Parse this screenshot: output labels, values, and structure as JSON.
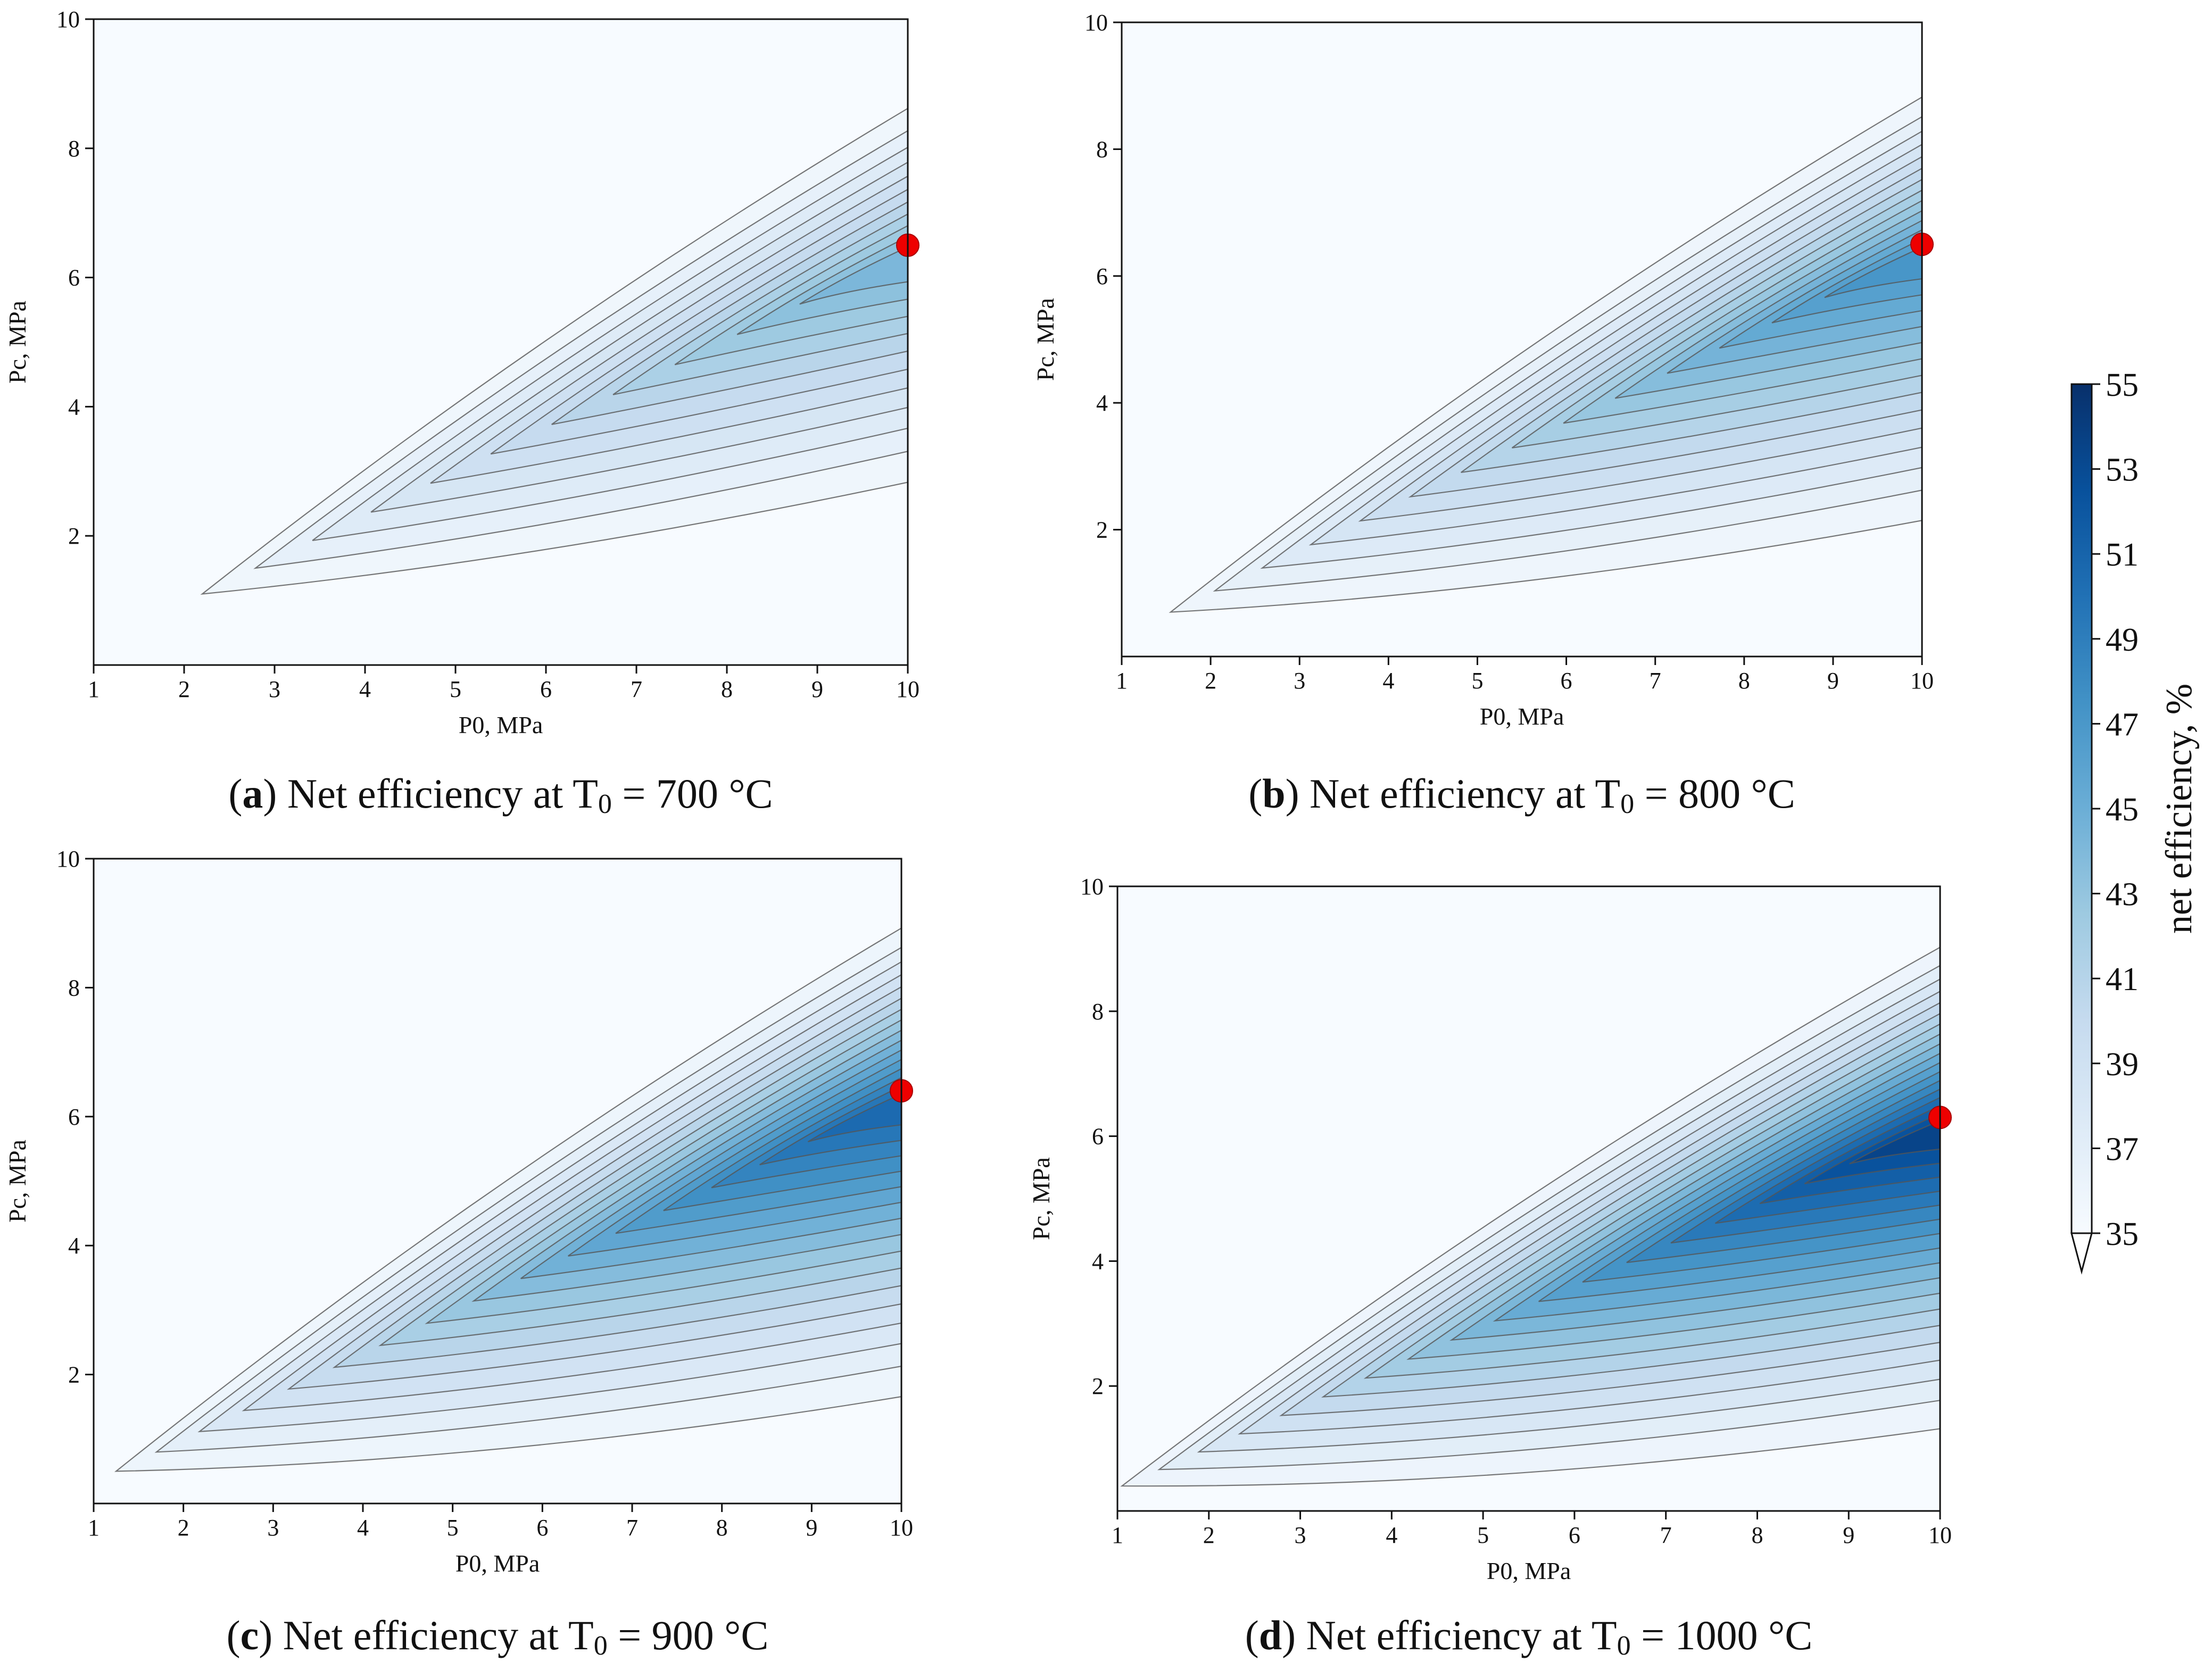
{
  "figure": {
    "colormap": "Blues",
    "contour_line_color": "#555555",
    "marker_color": "#ee0000"
  },
  "colorbar": {
    "label": "net efficiency, %",
    "vmin": 35,
    "vmax": 55,
    "ticks": [
      "35",
      "37",
      "39",
      "41",
      "43",
      "45",
      "47",
      "49",
      "51",
      "53",
      "55"
    ],
    "extend": "min"
  },
  "chart_data": [
    {
      "type": "contour",
      "caption": {
        "letter": "a",
        "text": "Net efficiency at T",
        "sub": "0",
        "rest": "= 700 °C"
      },
      "xlabel": "P0, MPa",
      "ylabel": "Pc, MPa",
      "xlim": [
        1,
        10
      ],
      "ylim": [
        0,
        10
      ],
      "xticks": [
        "1",
        "2",
        "3",
        "4",
        "5",
        "6",
        "7",
        "8",
        "9",
        "10"
      ],
      "yticks": [
        "2",
        "4",
        "6",
        "8",
        "10"
      ],
      "tip": [
        2.2,
        1.1
      ],
      "apex": [
        10,
        6.4
      ],
      "upper_end": 8.8,
      "lower_end": 3.1,
      "peak_efficiency": 45,
      "level_count": 11,
      "optimum": {
        "x": 10,
        "y": 6.5
      }
    },
    {
      "type": "contour",
      "caption": {
        "letter": "b",
        "text": "Net efficiency at T",
        "sub": "0",
        "rest": "= 800 °C"
      },
      "xlabel": "P0, MPa",
      "ylabel": "Pc, MPa",
      "xlim": [
        1,
        10
      ],
      "ylim": [
        0,
        10
      ],
      "xticks": [
        "1",
        "2",
        "3",
        "4",
        "5",
        "6",
        "7",
        "8",
        "9",
        "10"
      ],
      "yticks": [
        "2",
        "4",
        "6",
        "8",
        "10"
      ],
      "tip": [
        1.55,
        0.7
      ],
      "apex": [
        10,
        6.4
      ],
      "upper_end": 9.0,
      "lower_end": 2.4,
      "peak_efficiency": 48,
      "level_count": 14,
      "optimum": {
        "x": 10,
        "y": 6.5
      }
    },
    {
      "type": "contour",
      "caption": {
        "letter": "c",
        "text": "Net efficiency at T",
        "sub": "0",
        "rest": "= 900 °C"
      },
      "xlabel": "P0, MPa",
      "ylabel": "Pc, MPa",
      "xlim": [
        1,
        10
      ],
      "ylim": [
        0,
        10
      ],
      "xticks": [
        "1",
        "2",
        "3",
        "4",
        "5",
        "6",
        "7",
        "8",
        "9",
        "10"
      ],
      "yticks": [
        "2",
        "4",
        "6",
        "8",
        "10"
      ],
      "tip": [
        1.25,
        0.5
      ],
      "apex": [
        10,
        6.3
      ],
      "upper_end": 9.1,
      "lower_end": 1.9,
      "peak_efficiency": 51.5,
      "level_count": 16,
      "optimum": {
        "x": 10,
        "y": 6.4
      }
    },
    {
      "type": "contour",
      "caption": {
        "letter": "d",
        "text": "Net efficiency at T",
        "sub": "0",
        "rest": "= 1000 °C"
      },
      "xlabel": "P0, MPa",
      "ylabel": "Pc, MPa",
      "xlim": [
        1,
        10
      ],
      "ylim": [
        0,
        10
      ],
      "xticks": [
        "1",
        "2",
        "3",
        "4",
        "5",
        "6",
        "7",
        "8",
        "9",
        "10"
      ],
      "yticks": [
        "2",
        "4",
        "6",
        "8",
        "10"
      ],
      "tip": [
        1.05,
        0.4
      ],
      "apex": [
        10,
        6.2
      ],
      "upper_end": 9.2,
      "lower_end": 1.55,
      "peak_efficiency": 54.5,
      "level_count": 18,
      "optimum": {
        "x": 10,
        "y": 6.3
      }
    }
  ]
}
